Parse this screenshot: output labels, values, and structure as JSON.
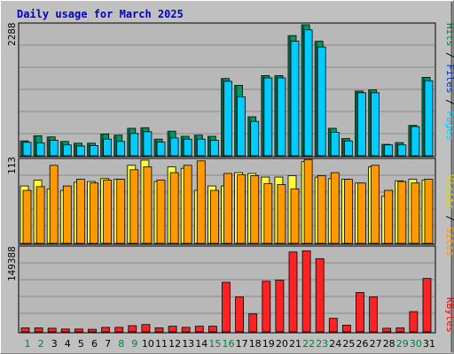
{
  "chart_data": {
    "type": "bar",
    "title": "Daily usage for March 2025",
    "categories": [
      "1",
      "2",
      "3",
      "4",
      "5",
      "6",
      "7",
      "8",
      "9",
      "10",
      "11",
      "12",
      "13",
      "14",
      "15",
      "16",
      "17",
      "18",
      "19",
      "20",
      "21",
      "22",
      "23",
      "24",
      "25",
      "26",
      "27",
      "28",
      "29",
      "30",
      "31"
    ],
    "weekend_days": [
      "1",
      "2",
      "8",
      "9",
      "15",
      "16",
      "22",
      "23",
      "29",
      "30"
    ],
    "panels": [
      {
        "id": "hits-files-pages",
        "ytick": "2288",
        "ymax": 2288,
        "legend": [
          {
            "label": "Pages",
            "color": "#00ccff"
          },
          {
            "label": "Files",
            "color": "#0033cc"
          },
          {
            "label": "Hits",
            "color": "#008040"
          }
        ],
        "series": [
          {
            "name": "Hits",
            "color": "#009966",
            "values": [
              260,
              350,
              330,
              250,
              220,
              220,
              380,
              360,
              480,
              490,
              290,
              430,
              340,
              360,
              340,
              1350,
              1230,
              680,
              1400,
              1400,
              2100,
              2288,
              2000,
              480,
              300,
              1130,
              1150,
              200,
              230,
              530,
              1370
            ]
          },
          {
            "name": "Pages",
            "color": "#00ccff",
            "values": [
              235,
              225,
              270,
              190,
              170,
              180,
              290,
              250,
              390,
              420,
              240,
              310,
              290,
              290,
              270,
              1300,
              1030,
              600,
              1360,
              1360,
              2000,
              2200,
              1900,
              410,
              260,
              1100,
              1100,
              190,
              190,
              510,
              1310
            ]
          }
        ]
      },
      {
        "id": "visits-sites",
        "ytick": "113",
        "ymax": 113,
        "legend": [
          {
            "label": "Sites",
            "color": "#ff9900"
          },
          {
            "label": "Visits",
            "color": "#ffff00"
          }
        ],
        "series": [
          {
            "name": "Visits",
            "color": "#ffff33",
            "values": [
              78,
              86,
              74,
              72,
              83,
              84,
              88,
              87,
              106,
              113,
              84,
              104,
              102,
              72,
              78,
              78,
              96,
              95,
              90,
              90,
              92,
              111,
              90,
              88,
              87,
              82,
              104,
              64,
              85,
              87,
              86
            ]
          },
          {
            "name": "Sites",
            "color": "#ff9900",
            "values": [
              72,
              77,
              106,
              78,
              87,
              82,
              86,
              87,
              100,
              104,
              86,
              96,
              106,
              112,
              72,
              95,
              93,
              92,
              81,
              80,
              74,
              114,
              92,
              96,
              87,
              82,
              106,
              72,
              84,
              82,
              87
            ]
          }
        ]
      },
      {
        "id": "kbytes",
        "ytick": "149388",
        "ymax": 149388,
        "legend": [
          {
            "label": "KBytes",
            "color": "#ff0000"
          }
        ],
        "series": [
          {
            "name": "KBytes",
            "color": "#ff2222",
            "values": [
              7000,
              7000,
              6500,
              5000,
              5000,
              4500,
              8000,
              8000,
              11000,
              13000,
              7000,
              10000,
              8000,
              10000,
              10000,
              88000,
              62000,
              32000,
              90000,
              92000,
              142000,
              144000,
              130000,
              24000,
              12000,
              70000,
              62000,
              6500,
              7000,
              36000,
              95000
            ]
          }
        ]
      }
    ]
  }
}
